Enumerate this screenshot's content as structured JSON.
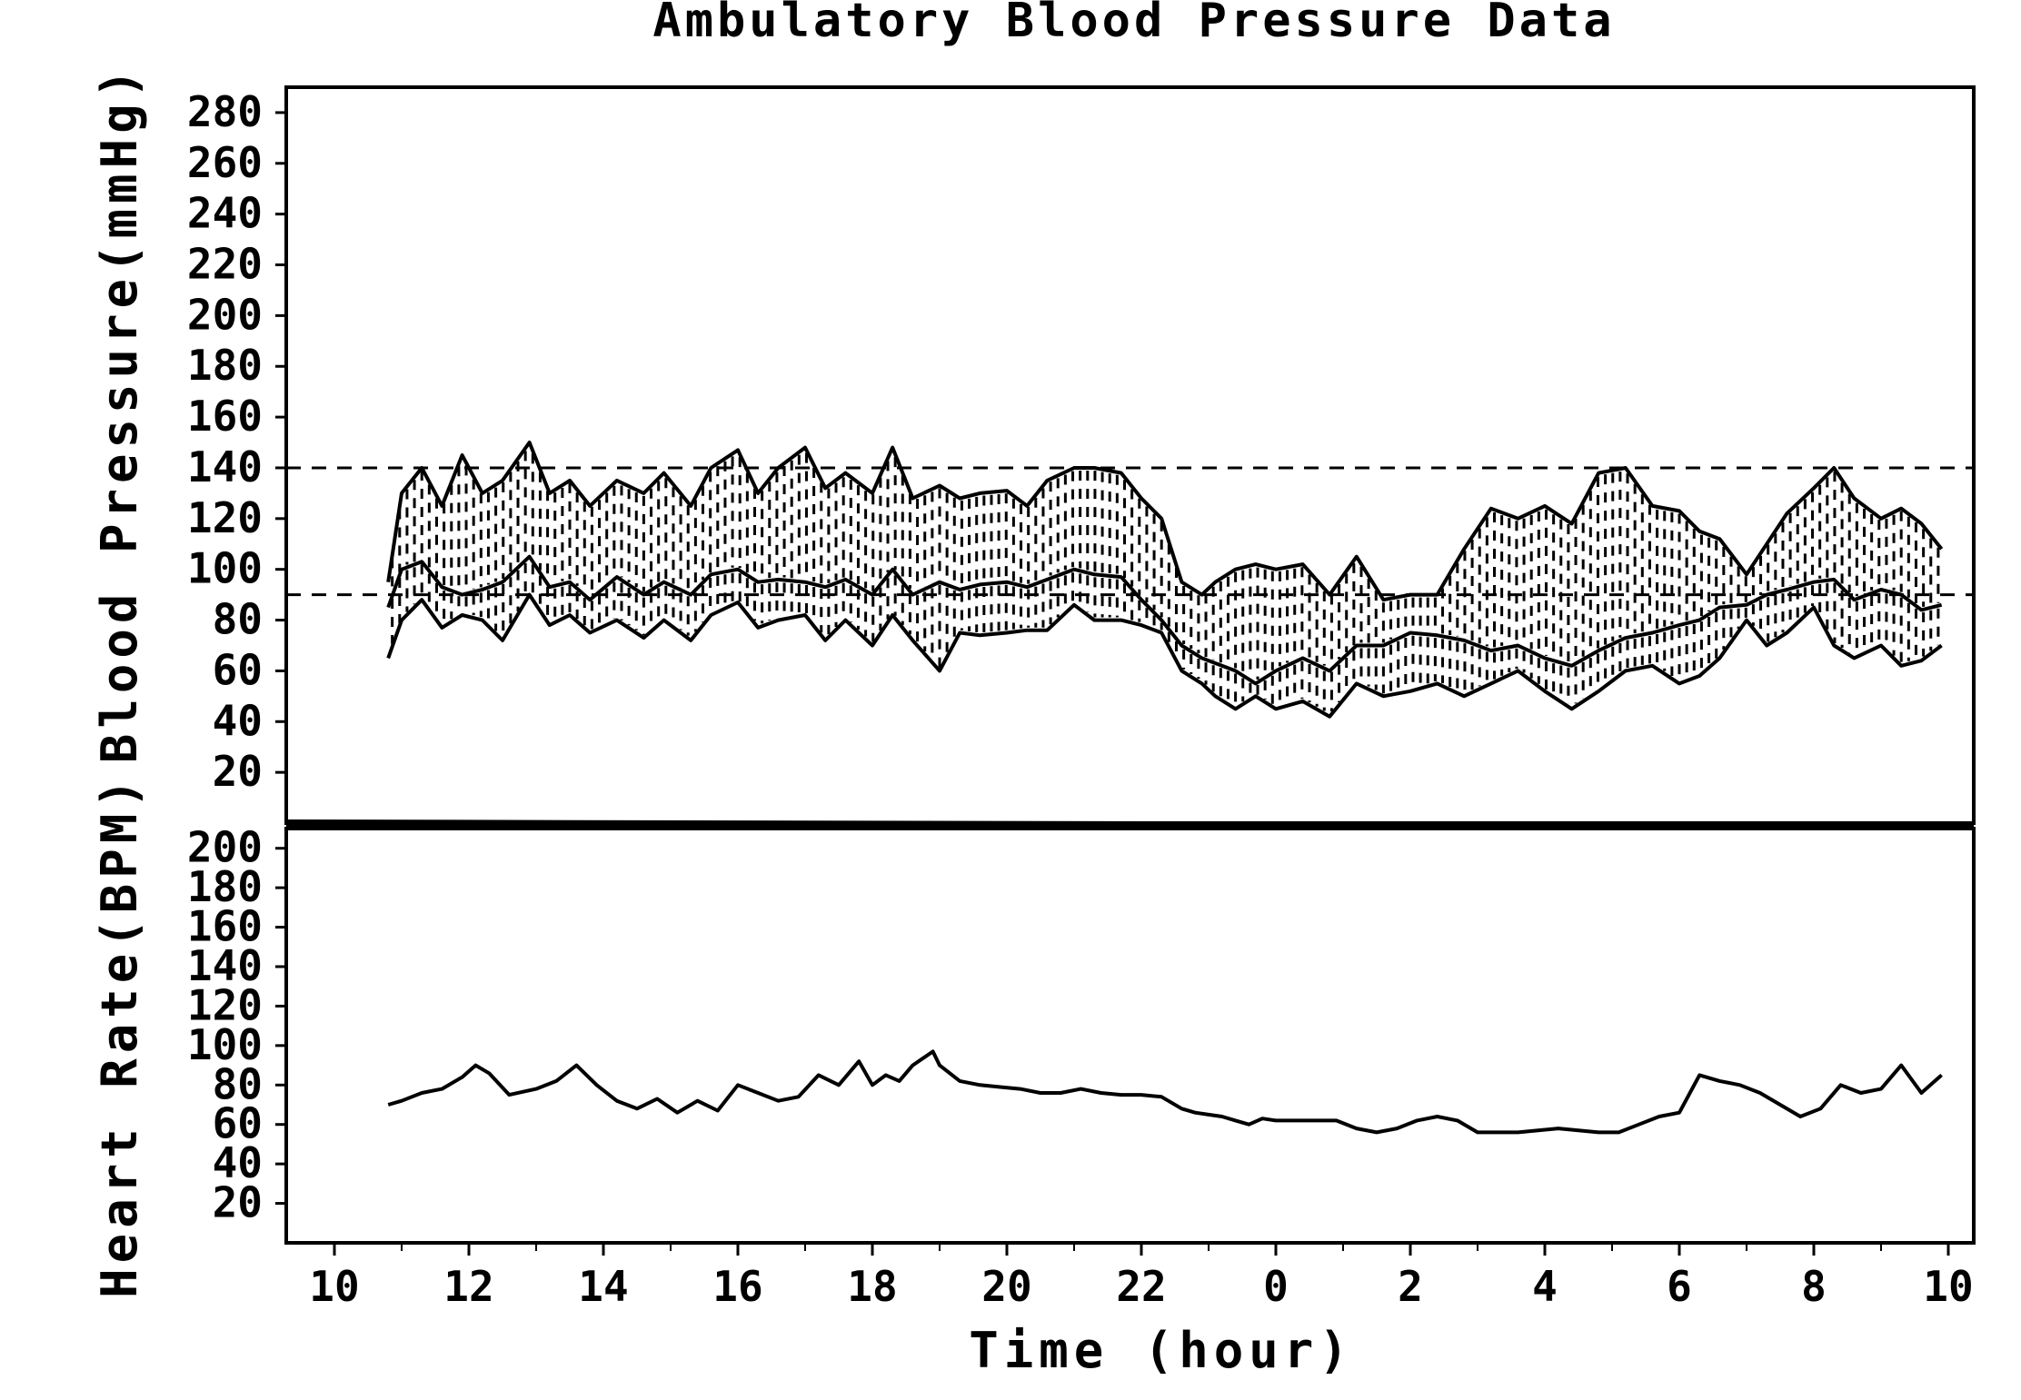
{
  "chart_data": {
    "type": "line",
    "title": "Ambulatory Blood Pressure Data",
    "xlabel": "Time (hour)",
    "x_ticks": [
      "10",
      "12",
      "14",
      "16",
      "18",
      "20",
      "22",
      "0",
      "2",
      "4",
      "6",
      "8",
      "10"
    ],
    "panels": [
      {
        "id": "bp",
        "ylabel": "Blood Pressure(mmHg)",
        "ylim": [
          0,
          290
        ],
        "y_ticks": [
          20,
          40,
          60,
          80,
          100,
          120,
          140,
          160,
          180,
          200,
          220,
          240,
          260,
          280
        ],
        "reference_lines": [
          140,
          90
        ],
        "shaded_bands": [
          [
            "systolic",
            "mean"
          ],
          [
            "mean",
            "diastolic"
          ]
        ],
        "series": [
          {
            "id": "systolic",
            "style": "solid",
            "x": [
              10.8,
              11.0,
              11.3,
              11.6,
              11.9,
              12.2,
              12.5,
              12.9,
              13.2,
              13.5,
              13.8,
              14.2,
              14.6,
              14.9,
              15.3,
              15.6,
              16.0,
              16.3,
              16.6,
              17.0,
              17.3,
              17.6,
              18.0,
              18.3,
              18.6,
              19.0,
              19.3,
              19.6,
              20.0,
              20.3,
              20.6,
              21.0,
              21.3,
              21.7,
              22.0,
              22.3,
              22.6,
              22.9,
              23.1,
              23.4,
              23.7,
              24.0,
              24.4,
              24.8,
              25.2,
              25.6,
              26.0,
              26.4,
              26.8,
              27.2,
              27.6,
              28.0,
              28.4,
              28.8,
              29.2,
              29.6,
              30.0,
              30.3,
              30.6,
              31.0,
              31.3,
              31.6,
              32.0,
              32.3,
              32.6,
              33.0,
              33.3,
              33.6,
              33.9
            ],
            "y": [
              95,
              130,
              140,
              125,
              145,
              130,
              135,
              150,
              130,
              135,
              125,
              135,
              130,
              138,
              125,
              140,
              147,
              130,
              140,
              148,
              132,
              138,
              130,
              148,
              128,
              133,
              128,
              130,
              131,
              125,
              135,
              140,
              140,
              138,
              128,
              120,
              95,
              90,
              95,
              100,
              102,
              100,
              102,
              90,
              105,
              88,
              90,
              90,
              108,
              124,
              120,
              125,
              118,
              138,
              140,
              125,
              123,
              115,
              112,
              98,
              110,
              122,
              132,
              140,
              128,
              120,
              124,
              118,
              108
            ]
          },
          {
            "id": "mean",
            "style": "solid",
            "x": [
              10.8,
              11.0,
              11.3,
              11.6,
              11.9,
              12.2,
              12.5,
              12.9,
              13.2,
              13.5,
              13.8,
              14.2,
              14.6,
              14.9,
              15.3,
              15.6,
              16.0,
              16.3,
              16.6,
              17.0,
              17.3,
              17.6,
              18.0,
              18.3,
              18.6,
              19.0,
              19.3,
              19.6,
              20.0,
              20.3,
              20.6,
              21.0,
              21.3,
              21.7,
              22.0,
              22.3,
              22.6,
              22.9,
              23.1,
              23.4,
              23.7,
              24.0,
              24.4,
              24.8,
              25.2,
              25.6,
              26.0,
              26.4,
              26.8,
              27.2,
              27.6,
              28.0,
              28.4,
              28.8,
              29.2,
              29.6,
              30.0,
              30.3,
              30.6,
              31.0,
              31.3,
              31.6,
              32.0,
              32.3,
              32.6,
              33.0,
              33.3,
              33.6,
              33.9
            ],
            "y": [
              85,
              100,
              103,
              93,
              90,
              92,
              95,
              105,
              93,
              95,
              88,
              97,
              90,
              95,
              90,
              98,
              100,
              95,
              96,
              95,
              93,
              96,
              90,
              100,
              90,
              95,
              92,
              94,
              95,
              93,
              96,
              100,
              98,
              97,
              88,
              80,
              70,
              65,
              63,
              60,
              55,
              60,
              65,
              60,
              70,
              70,
              75,
              74,
              72,
              68,
              70,
              65,
              62,
              68,
              73,
              75,
              78,
              80,
              85,
              86,
              90,
              92,
              95,
              96,
              88,
              92,
              90,
              84,
              86
            ]
          },
          {
            "id": "diastolic",
            "style": "solid",
            "x": [
              10.8,
              11.0,
              11.3,
              11.6,
              11.9,
              12.2,
              12.5,
              12.9,
              13.2,
              13.5,
              13.8,
              14.2,
              14.6,
              14.9,
              15.3,
              15.6,
              16.0,
              16.3,
              16.6,
              17.0,
              17.3,
              17.6,
              18.0,
              18.3,
              18.6,
              19.0,
              19.3,
              19.6,
              20.0,
              20.3,
              20.6,
              21.0,
              21.3,
              21.7,
              22.0,
              22.3,
              22.6,
              22.9,
              23.1,
              23.4,
              23.7,
              24.0,
              24.4,
              24.8,
              25.2,
              25.6,
              26.0,
              26.4,
              26.8,
              27.2,
              27.6,
              28.0,
              28.4,
              28.8,
              29.2,
              29.6,
              30.0,
              30.3,
              30.6,
              31.0,
              31.3,
              31.6,
              32.0,
              32.3,
              32.6,
              33.0,
              33.3,
              33.6,
              33.9
            ],
            "y": [
              65,
              80,
              88,
              77,
              82,
              80,
              72,
              90,
              78,
              82,
              75,
              80,
              73,
              80,
              72,
              82,
              87,
              77,
              80,
              82,
              72,
              80,
              70,
              82,
              72,
              60,
              75,
              74,
              75,
              76,
              76,
              86,
              80,
              80,
              78,
              75,
              60,
              55,
              50,
              45,
              50,
              45,
              48,
              42,
              55,
              50,
              52,
              55,
              50,
              55,
              60,
              52,
              45,
              52,
              60,
              62,
              55,
              58,
              65,
              80,
              70,
              75,
              85,
              70,
              65,
              70,
              62,
              64,
              70
            ]
          }
        ]
      },
      {
        "id": "hr",
        "ylabel": "Heart Rate(BPM)",
        "ylim": [
          0,
          210
        ],
        "y_ticks": [
          20,
          40,
          60,
          80,
          100,
          120,
          140,
          160,
          180,
          200
        ],
        "series": [
          {
            "id": "heart_rate",
            "style": "solid",
            "x": [
              10.8,
              11.0,
              11.3,
              11.6,
              11.9,
              12.1,
              12.3,
              12.6,
              13.0,
              13.3,
              13.6,
              13.9,
              14.2,
              14.5,
              14.8,
              15.1,
              15.4,
              15.7,
              16.0,
              16.3,
              16.6,
              16.9,
              17.2,
              17.5,
              17.8,
              18.0,
              18.2,
              18.4,
              18.6,
              18.9,
              19.0,
              19.3,
              19.6,
              19.9,
              20.2,
              20.5,
              20.8,
              21.1,
              21.4,
              21.7,
              22.0,
              22.3,
              22.6,
              22.8,
              23.0,
              23.2,
              23.4,
              23.6,
              23.8,
              24.0,
              24.3,
              24.6,
              24.9,
              25.2,
              25.5,
              25.8,
              26.1,
              26.4,
              26.7,
              27.0,
              27.3,
              27.6,
              27.9,
              28.2,
              28.5,
              28.8,
              29.1,
              29.4,
              29.7,
              30.0,
              30.3,
              30.6,
              30.9,
              31.2,
              31.5,
              31.8,
              32.1,
              32.4,
              32.7,
              33.0,
              33.3,
              33.6,
              33.9
            ],
            "y": [
              70,
              72,
              76,
              78,
              84,
              90,
              86,
              75,
              78,
              82,
              90,
              80,
              72,
              68,
              73,
              66,
              72,
              67,
              80,
              76,
              72,
              74,
              85,
              80,
              92,
              80,
              85,
              82,
              90,
              97,
              90,
              82,
              80,
              79,
              78,
              76,
              76,
              78,
              76,
              75,
              75,
              74,
              68,
              66,
              65,
              64,
              62,
              60,
              63,
              62,
              62,
              62,
              62,
              58,
              56,
              58,
              62,
              64,
              62,
              56,
              56,
              56,
              57,
              58,
              57,
              56,
              56,
              60,
              64,
              66,
              85,
              82,
              80,
              76,
              70,
              64,
              68,
              80,
              76,
              78,
              90,
              76,
              85
            ]
          }
        ]
      }
    ]
  }
}
